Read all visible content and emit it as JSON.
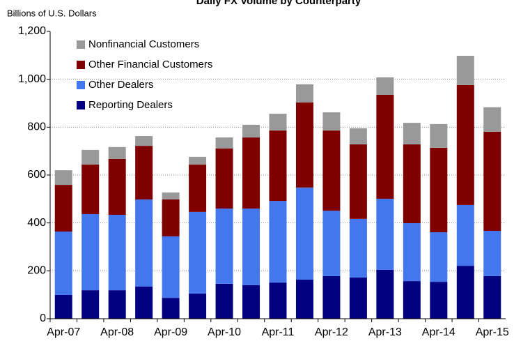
{
  "chart_data": {
    "type": "stacked_bar",
    "title": "Daily FX Volume by Counterparty",
    "y_label": "Billions of U.S. Dollars",
    "categories": [
      "Apr-07",
      null,
      "Apr-08",
      null,
      "Apr-09",
      null,
      "Apr-10",
      null,
      "Apr-11",
      null,
      "Apr-12",
      null,
      "Apr-13",
      null,
      "Apr-14",
      null,
      "Apr-15"
    ],
    "series": [
      {
        "name": "Reporting Dealers",
        "color": "#000080",
        "values": [
          99,
          119,
          119,
          134,
          87,
          105,
          146,
          140,
          151,
          163,
          178,
          172,
          204,
          157,
          154,
          221,
          178
        ]
      },
      {
        "name": "Other Dealers",
        "color": "#4477ee",
        "values": [
          265,
          318,
          315,
          364,
          257,
          341,
          314,
          320,
          341,
          385,
          273,
          245,
          297,
          242,
          207,
          254,
          189
        ]
      },
      {
        "name": "Other Financial Customers",
        "color": "#800000",
        "values": [
          195,
          207,
          233,
          224,
          154,
          198,
          251,
          297,
          294,
          355,
          335,
          311,
          434,
          329,
          353,
          501,
          414
        ]
      },
      {
        "name": "Nonfinancial Customers",
        "color": "#999999",
        "values": [
          61,
          61,
          50,
          41,
          29,
          32,
          46,
          53,
          70,
          76,
          76,
          67,
          73,
          90,
          99,
          122,
          102
        ]
      }
    ],
    "ylim": [
      0,
      1200
    ],
    "yticks": [
      0,
      200,
      400,
      600,
      800,
      {
        "value": 1000,
        "label": "1,000"
      },
      {
        "value": 1200,
        "label": "1,200"
      }
    ],
    "grid": true,
    "legend": "upper left"
  }
}
